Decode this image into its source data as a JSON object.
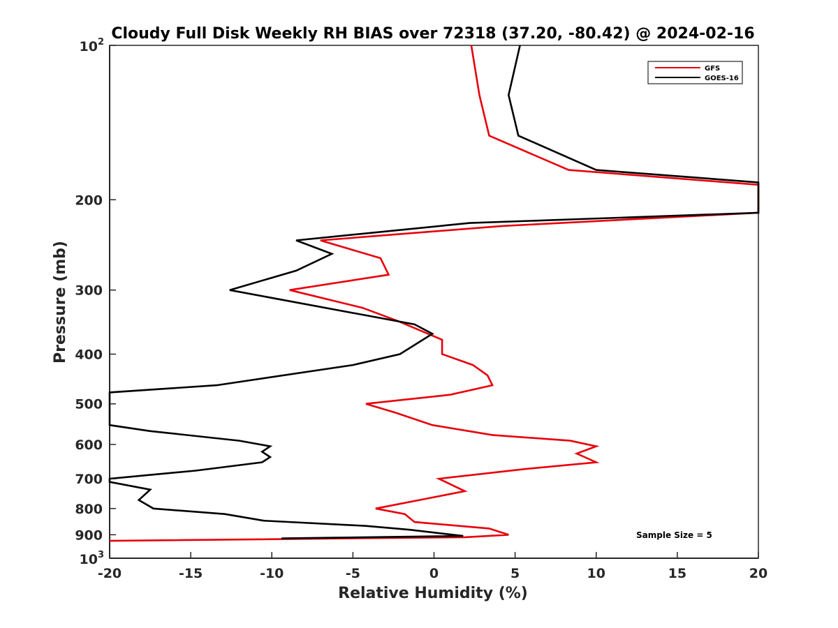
{
  "chart_data": {
    "type": "line",
    "title": "Cloudy Full Disk Weekly RH BIAS over 72318 (37.20, -80.42) @ 2024-02-16",
    "xlabel": "Relative Humidity (%)",
    "ylabel": "Pressure (mb)",
    "xlim": [
      -20,
      20
    ],
    "ylim": [
      100,
      1000
    ],
    "yscale": "log",
    "y_reversed": true,
    "x_ticks": [
      "-20",
      "-15",
      "-10",
      "-5",
      "0",
      "5",
      "10",
      "15",
      "20"
    ],
    "x_tick_values": [
      -20,
      -15,
      -10,
      -5,
      0,
      5,
      10,
      15,
      20
    ],
    "y_ticks": [
      {
        "value": 100,
        "base": "10",
        "exp": "2"
      },
      {
        "value": 200,
        "label": "200"
      },
      {
        "value": 300,
        "label": "300"
      },
      {
        "value": 400,
        "label": "400"
      },
      {
        "value": 500,
        "label": "500"
      },
      {
        "value": 600,
        "label": "600"
      },
      {
        "value": 700,
        "label": "700"
      },
      {
        "value": 800,
        "label": "800"
      },
      {
        "value": 900,
        "label": "900"
      },
      {
        "value": 1000,
        "base": "10",
        "exp": "3"
      }
    ],
    "legend": {
      "placement": "top-right"
    },
    "annotation": "Sample Size = 5",
    "series": [
      {
        "name": "GFS",
        "color": "#e8000b",
        "points": [
          [
            2.3,
            100
          ],
          [
            2.8,
            125
          ],
          [
            3.4,
            150
          ],
          [
            8.3,
            175
          ],
          [
            20,
            187
          ],
          [
            20,
            212
          ],
          [
            4.2,
            225
          ],
          [
            -7,
            240
          ],
          [
            -3.3,
            260
          ],
          [
            -2.8,
            280
          ],
          [
            -8.9,
            300
          ],
          [
            -4.4,
            325
          ],
          [
            -2.2,
            345
          ],
          [
            0.5,
            375
          ],
          [
            0.5,
            400
          ],
          [
            2.4,
            420
          ],
          [
            3.3,
            440
          ],
          [
            3.6,
            460
          ],
          [
            1,
            480
          ],
          [
            -4.2,
            500
          ],
          [
            -2.4,
            520
          ],
          [
            -0.1,
            550
          ],
          [
            3.6,
            575
          ],
          [
            8.4,
            590
          ],
          [
            10,
            605
          ],
          [
            8.8,
            625
          ],
          [
            10,
            650
          ],
          [
            5.6,
            670
          ],
          [
            0.3,
            700
          ],
          [
            1.9,
            740
          ],
          [
            -0.9,
            770
          ],
          [
            -3.6,
            800
          ],
          [
            -1.8,
            820
          ],
          [
            -1.2,
            850
          ],
          [
            3.4,
            875
          ],
          [
            4.6,
            900
          ],
          [
            1.9,
            910
          ],
          [
            -20,
            925
          ]
        ]
      },
      {
        "name": "GOES-16",
        "color": "#000000",
        "points": [
          [
            5.3,
            100
          ],
          [
            4.6,
            125
          ],
          [
            5.2,
            150
          ],
          [
            10,
            175
          ],
          [
            20,
            185
          ],
          [
            20,
            212
          ],
          [
            2.2,
            222
          ],
          [
            -8.5,
            240
          ],
          [
            -6.3,
            255
          ],
          [
            -8.5,
            275
          ],
          [
            -12.6,
            300
          ],
          [
            -1.2,
            350
          ],
          [
            -0.1,
            365
          ],
          [
            -2.1,
            400
          ],
          [
            -5,
            420
          ],
          [
            -13.4,
            460
          ],
          [
            -20,
            475
          ],
          [
            -20,
            550
          ],
          [
            -17.5,
            565
          ],
          [
            -12,
            590
          ],
          [
            -10.1,
            605
          ],
          [
            -10.6,
            620
          ],
          [
            -10.1,
            635
          ],
          [
            -10.6,
            650
          ],
          [
            -14.7,
            675
          ],
          [
            -20,
            700
          ],
          [
            -20,
            710
          ],
          [
            -17.5,
            735
          ],
          [
            -18.2,
            770
          ],
          [
            -17.3,
            800
          ],
          [
            -12.9,
            820
          ],
          [
            -10.5,
            845
          ],
          [
            -4.2,
            865
          ],
          [
            -1.5,
            880
          ],
          [
            1.8,
            905
          ],
          [
            -9.4,
            915
          ]
        ]
      }
    ]
  }
}
